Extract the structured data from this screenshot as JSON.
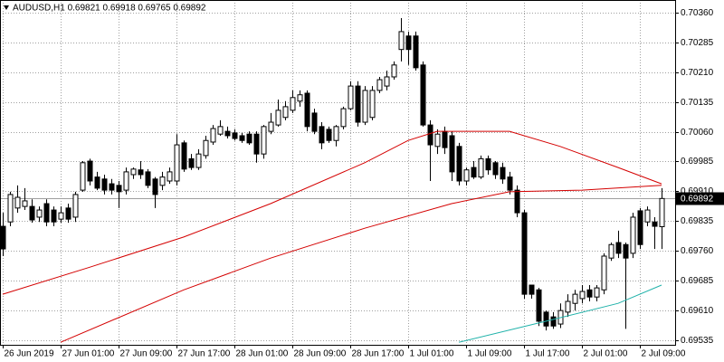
{
  "chart_data": {
    "type": "candlestick",
    "title": "AUDUSD,H1  0.69821 0.69918 0.69765 0.69892",
    "categories": [
      "26 Jun 2019",
      null,
      null,
      null,
      null,
      null,
      null,
      null,
      "27 Jun 01:00",
      null,
      null,
      null,
      null,
      null,
      null,
      null,
      "27 Jun 09:00",
      null,
      null,
      null,
      null,
      null,
      null,
      null,
      "27 Jun 17:00",
      null,
      null,
      null,
      null,
      null,
      null,
      null,
      "28 Jun 01:00",
      null,
      null,
      null,
      null,
      null,
      null,
      null,
      "28 Jun 09:00",
      null,
      null,
      null,
      null,
      null,
      null,
      null,
      "28 Jun 17:00",
      null,
      null,
      null,
      null,
      null,
      null,
      null,
      "1 Jul 01:00",
      null,
      null,
      null,
      null,
      null,
      null,
      null,
      "1 Jul 09:00",
      null,
      null,
      null,
      null,
      null,
      null,
      null,
      "1 Jul 17:00",
      null,
      null,
      null,
      null,
      null,
      null,
      null,
      "2 Jul 01:00",
      null,
      null,
      null,
      null,
      null,
      null,
      null,
      "2 Jul 09:00",
      null,
      null,
      null
    ],
    "open": [
      0.69822,
      0.69833,
      0.69868,
      0.69872,
      0.69872,
      0.69845,
      0.69879,
      0.69863,
      0.6984,
      0.69868,
      0.69845,
      0.69913,
      0.69986,
      0.69946,
      0.69941,
      0.69929,
      0.69925,
      0.69913,
      0.69952,
      0.69964,
      0.69959,
      0.69941,
      0.69925,
      0.69936,
      0.69936,
      0.70032,
      0.69992,
      0.6997,
      0.7,
      0.70034,
      0.70054,
      0.70061,
      0.70057,
      0.7005,
      0.70054,
      0.70054,
      0.70004,
      0.70061,
      0.70077,
      0.70096,
      0.70114,
      0.70137,
      0.70157,
      0.70107,
      0.70073,
      0.70066,
      0.70038,
      0.70073,
      0.70118,
      0.70175,
      0.70084,
      0.70096,
      0.70164,
      0.70175,
      0.70198,
      0.70267,
      0.70301,
      0.70301,
      0.70228,
      0.70077,
      0.70023,
      0.70061,
      0.7005,
      0.70023,
      0.69936,
      0.6997,
      0.69946,
      0.69992,
      0.69982,
      0.6997,
      0.69946,
      0.69913,
      0.69856,
      0.69674,
      0.69662,
      0.69606,
      0.69594,
      0.69576,
      0.69606,
      0.69628,
      0.6964,
      0.69662,
      0.69644,
      0.69662,
      0.69742,
      0.69781,
      0.69776,
      0.69754,
      0.69861,
      0.69833,
      0.69833,
      0.69821
    ],
    "high": [
      0.69856,
      0.69909,
      0.69925,
      0.69918,
      0.6989,
      0.69872,
      0.6989,
      0.69872,
      0.69872,
      0.69879,
      0.69909,
      0.69986,
      0.69992,
      0.69959,
      0.69952,
      0.69941,
      0.69936,
      0.6997,
      0.6997,
      0.69986,
      0.69966,
      0.69946,
      0.69959,
      0.6997,
      0.70054,
      0.70038,
      0.70004,
      0.70016,
      0.7005,
      0.70077,
      0.70089,
      0.70073,
      0.70066,
      0.70057,
      0.70061,
      0.70061,
      0.70077,
      0.70107,
      0.70141,
      0.70137,
      0.70164,
      0.70164,
      0.70164,
      0.70118,
      0.70084,
      0.70073,
      0.70077,
      0.70123,
      0.70187,
      0.70187,
      0.70175,
      0.70175,
      0.70198,
      0.70214,
      0.70237,
      0.70346,
      0.70312,
      0.70312,
      0.70237,
      0.70089,
      0.70066,
      0.70073,
      0.70061,
      0.70032,
      0.6997,
      0.69986,
      0.7,
      0.7,
      0.69986,
      0.69982,
      0.69959,
      0.69925,
      0.69863,
      0.69674,
      0.69667,
      0.6961,
      0.69606,
      0.69628,
      0.69651,
      0.69662,
      0.69674,
      0.69674,
      0.69674,
      0.69754,
      0.69781,
      0.69811,
      0.69781,
      0.69856,
      0.69868,
      0.69872,
      0.69845,
      0.69918
    ],
    "low": [
      0.69747,
      0.69822,
      0.69856,
      0.69863,
      0.69831,
      0.69833,
      0.69822,
      0.69822,
      0.69831,
      0.69831,
      0.69833,
      0.69909,
      0.69925,
      0.69913,
      0.69902,
      0.69902,
      0.69868,
      0.69902,
      0.69941,
      0.69941,
      0.69918,
      0.69868,
      0.69913,
      0.69929,
      0.69925,
      0.69959,
      0.69964,
      0.69964,
      0.69992,
      0.70027,
      0.7005,
      0.70043,
      0.70038,
      0.70032,
      0.70027,
      0.69982,
      0.69992,
      0.70054,
      0.70073,
      0.70089,
      0.70107,
      0.70123,
      0.70061,
      0.70054,
      0.70016,
      0.70032,
      0.70023,
      0.70066,
      0.70114,
      0.70073,
      0.70077,
      0.70089,
      0.70157,
      0.70164,
      0.70191,
      0.70237,
      0.70228,
      0.70214,
      0.70073,
      0.69936,
      0.70004,
      0.70004,
      0.69936,
      0.69925,
      0.69925,
      0.69941,
      0.69941,
      0.69952,
      0.69941,
      0.69929,
      0.69902,
      0.69845,
      0.6964,
      0.6964,
      0.69571,
      0.6956,
      0.69564,
      0.69566,
      0.69594,
      0.6961,
      0.69628,
      0.69633,
      0.69633,
      0.69651,
      0.69735,
      0.69742,
      0.69564,
      0.69742,
      0.69765,
      0.69822,
      0.69765,
      0.69765
    ],
    "close": [
      0.69765,
      0.69902,
      0.69895,
      0.69886,
      0.69838,
      0.69863,
      0.69833,
      0.69833,
      0.69856,
      0.6984,
      0.69902,
      0.69982,
      0.69936,
      0.69918,
      0.69913,
      0.69913,
      0.69909,
      0.69959,
      0.69966,
      0.69952,
      0.69925,
      0.69902,
      0.69946,
      0.69959,
      0.70027,
      0.69966,
      0.6997,
      0.70004,
      0.70038,
      0.70068,
      0.70073,
      0.7005,
      0.70043,
      0.70038,
      0.70032,
      0.70004,
      0.70073,
      0.70084,
      0.70114,
      0.70123,
      0.70146,
      0.70153,
      0.70073,
      0.70061,
      0.70032,
      0.70038,
      0.70073,
      0.70118,
      0.70175,
      0.70084,
      0.70164,
      0.70164,
      0.70191,
      0.70198,
      0.70228,
      0.70312,
      0.70267,
      0.70221,
      0.70077,
      0.70027,
      0.70054,
      0.7002,
      0.69959,
      0.69936,
      0.69964,
      0.69946,
      0.69992,
      0.69964,
      0.69952,
      0.69941,
      0.69913,
      0.69856,
      0.69651,
      0.69651,
      0.69583,
      0.69571,
      0.69571,
      0.6961,
      0.69633,
      0.69651,
      0.69658,
      0.69644,
      0.69667,
      0.69747,
      0.69776,
      0.69754,
      0.69742,
      0.69845,
      0.69776,
      0.69863,
      0.69822,
      0.69892
    ],
    "up_color": "#ffffff",
    "down_color": "#000000",
    "ylim": [
      0.69526,
      0.70387
    ],
    "yticks": [
      {
        "value": 0.7036,
        "label": "0.70360"
      },
      0.70285,
      {
        "value": 0.7021,
        "label": "0.70210"
      },
      0.70135,
      {
        "value": 0.7006,
        "label": "0.70060"
      },
      0.69985,
      {
        "value": 0.6991,
        "label": "0.69910"
      },
      0.69835,
      {
        "value": 0.6976,
        "label": "0.69760"
      },
      0.69685,
      {
        "value": 0.6961,
        "label": "0.69610"
      },
      0.69535
    ],
    "grid": true,
    "last_price": 0.69892,
    "series": [
      {
        "color": "#d40000",
        "x": [
          0,
          12,
          25,
          37,
          50,
          56,
          60,
          70,
          77,
          85,
          91
        ],
        "values": [
          0.69651,
          0.69719,
          0.69795,
          0.69879,
          0.69982,
          0.70038,
          0.70061,
          0.70061,
          0.70023,
          0.6997,
          0.69929
        ]
      },
      {
        "color": "#d40000",
        "x": [
          8,
          25,
          37,
          50,
          62,
          70,
          80,
          91
        ],
        "values": [
          0.6953,
          0.69662,
          0.69742,
          0.69817,
          0.69879,
          0.69909,
          0.69913,
          0.69925
        ]
      },
      {
        "color": "#20b2aa",
        "x": [
          63,
          75,
          85,
          91
        ],
        "values": [
          0.6953,
          0.69583,
          0.69628,
          0.69674
        ]
      }
    ]
  }
}
